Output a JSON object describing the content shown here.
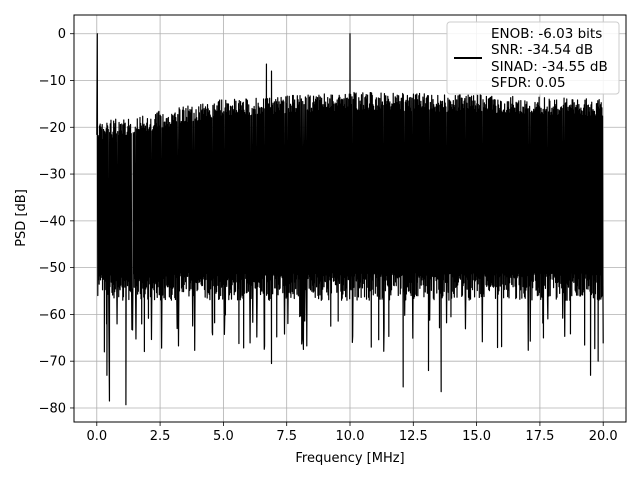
{
  "chart_data": {
    "type": "line",
    "title": "",
    "xlabel": "Frequency [MHz]",
    "ylabel": "PSD [dB]",
    "xlim": [
      -0.9,
      20.9
    ],
    "ylim": [
      -83.0,
      4.0
    ],
    "x_ticks": [
      0.0,
      2.5,
      5.0,
      7.5,
      10.0,
      12.5,
      15.0,
      17.5,
      20.0
    ],
    "x_tick_labels": [
      "0.0",
      "2.5",
      "5.0",
      "7.5",
      "10.0",
      "12.5",
      "15.0",
      "17.5",
      "20.0"
    ],
    "y_ticks": [
      0,
      -10,
      -20,
      -30,
      -40,
      -50,
      -60,
      -70,
      -80
    ],
    "y_tick_labels": [
      "0",
      "−10",
      "−20",
      "−30",
      "−40",
      "−50",
      "−60",
      "−70",
      "−80"
    ],
    "grid": true,
    "legend_position": "top-right",
    "legend_entries": [
      "ENOB: -6.03 bits",
      "SNR: -34.54 dB",
      "SINAD: -34.55 dB",
      "SFDR: 0.05"
    ],
    "series_color": "#000000",
    "series": [
      {
        "x_range": [
          0.0,
          20.0
        ],
        "noise_floor_top_db": [
          [
            0.0,
            -19.0
          ],
          [
            2.5,
            -16.5
          ],
          [
            5.0,
            -14.0
          ],
          [
            10.0,
            -12.5
          ],
          [
            15.0,
            -13.0
          ],
          [
            20.0,
            -14.0
          ]
        ],
        "noise_floor_bottom_db": -57.0,
        "peaks": [
          {
            "x": 0.02,
            "y": 0.0
          },
          {
            "x": 10.0,
            "y": 0.0
          },
          {
            "x": 6.7,
            "y": -6.5
          },
          {
            "x": 6.9,
            "y": -8.0
          }
        ],
        "dips": [
          {
            "x": 0.4,
            "y": -73.0
          },
          {
            "x": 0.5,
            "y": -78.5
          },
          {
            "x": 1.15,
            "y": -79.3
          },
          {
            "x": 0.3,
            "y": -68.0
          },
          {
            "x": 6.9,
            "y": -70.5
          },
          {
            "x": 12.1,
            "y": -75.5
          },
          {
            "x": 13.6,
            "y": -76.5
          },
          {
            "x": 13.1,
            "y": -72.0
          },
          {
            "x": 19.5,
            "y": -73.0
          },
          {
            "x": 19.8,
            "y": -70.0
          }
        ]
      }
    ]
  }
}
